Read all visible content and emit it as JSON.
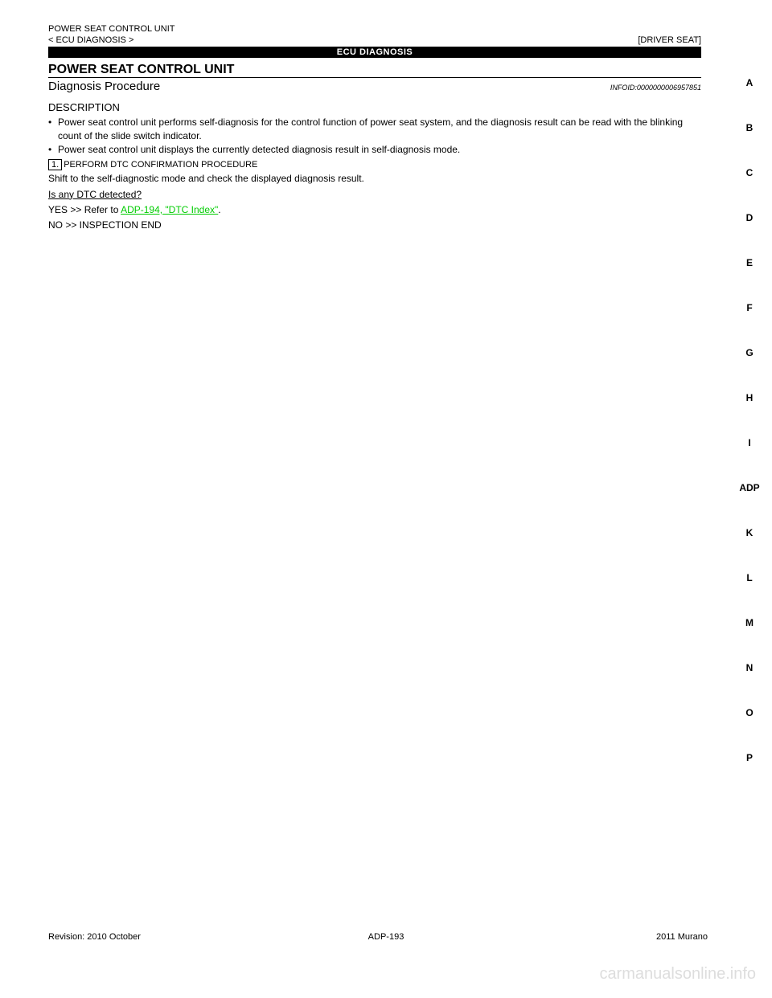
{
  "header": {
    "left": "POWER SEAT CONTROL UNIT",
    "right_top": "[DRIVER SEAT]",
    "breadcrumb": "< ECU DIAGNOSIS >"
  },
  "title_band": "ECU DIAGNOSIS",
  "section_title": "POWER SEAT CONTROL UNIT",
  "sub_title": "Diagnosis Procedure",
  "info_id": "INFOID:0000000006957851",
  "description_label": "DESCRIPTION",
  "bullets": [
    "Power seat control unit performs self-diagnosis for the control function of power seat system, and the diagnosis result can be read with the blinking count of the slide switch indicator.",
    "Power seat control unit displays the currently detected diagnosis result in self-diagnosis mode."
  ],
  "step1": {
    "num": "1.",
    "title": "PERFORM DTC CONFIRMATION PROCEDURE",
    "lines": [
      "Shift to the self-diagnostic mode and check the displayed diagnosis result.",
      "Is any DTC detected?"
    ],
    "yes": "YES   >> Refer to ",
    "yes_link": "ADP-194, \"DTC Index\"",
    "yes_after": ".",
    "no": "NO   >> INSPECTION END"
  },
  "side_index": [
    "A",
    "B",
    "C",
    "D",
    "E",
    "F",
    "G",
    "H",
    "I",
    "ADP",
    "K",
    "L",
    "M",
    "N",
    "O",
    "P"
  ],
  "active_index": "ADP",
  "footer": {
    "revision": "Revision: 2010 October",
    "page": "ADP-193",
    "edition": "2011 Murano"
  },
  "watermark": "carmanualsonline.info"
}
